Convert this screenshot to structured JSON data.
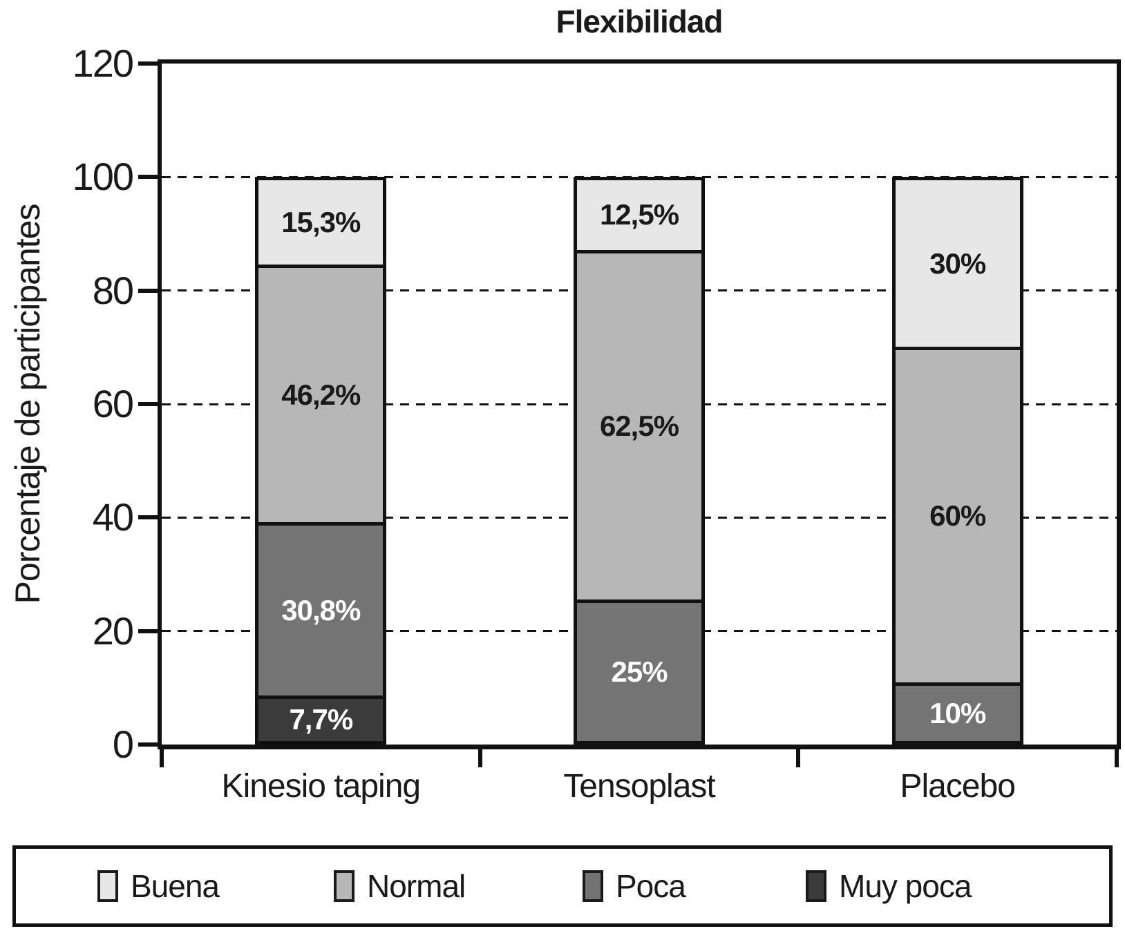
{
  "chart_data": {
    "type": "bar",
    "stacked": true,
    "title": "Flexibilidad",
    "ylabel": "Porcentaje de participantes",
    "xlabel": "",
    "ylim": [
      0,
      120
    ],
    "yticks": [
      "0",
      "20",
      "40",
      "60",
      "80",
      "100",
      "120"
    ],
    "ytick_values": [
      0,
      20,
      40,
      60,
      80,
      100,
      120
    ],
    "gridlines_at": [
      20,
      40,
      60,
      80,
      100
    ],
    "grid_style": "dashed horizontal",
    "categories": [
      "Kinesio taping",
      "Tensoplast",
      "Placebo"
    ],
    "series": [
      {
        "name": "Buena",
        "color": "#e7e7e7",
        "label_color": "#1a1a1a",
        "values": [
          15.3,
          12.5,
          30
        ],
        "labels": [
          "15,3%",
          "12,5%",
          "30%"
        ]
      },
      {
        "name": "Normal",
        "color": "#b7b7b7",
        "label_color": "#1a1a1a",
        "values": [
          46.2,
          62.5,
          60
        ],
        "labels": [
          "46,2%",
          "62,5%",
          "60%"
        ]
      },
      {
        "name": "Poca",
        "color": "#747474",
        "label_color": "#ffffff",
        "values": [
          30.8,
          25.0,
          10
        ],
        "labels": [
          "30,8%",
          "25%",
          "10%"
        ]
      },
      {
        "name": "Muy poca",
        "color": "#3b3b3b",
        "label_color": "#ffffff",
        "values": [
          7.7,
          0,
          0
        ],
        "labels": [
          "7,7%",
          "",
          ""
        ]
      }
    ],
    "legend": [
      "Buena",
      "Normal",
      "Poca",
      "Muy poca"
    ],
    "legend_position": "bottom",
    "axis_color": "#111111",
    "background_color": "#ffffff"
  }
}
